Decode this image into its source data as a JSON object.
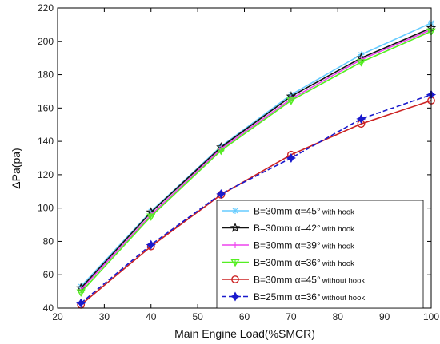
{
  "chart_data": {
    "type": "line",
    "title": "",
    "xlabel": "Main Engine Load(%SMCR)",
    "ylabel": "ΔPa(pa)",
    "xlim": [
      20,
      100
    ],
    "ylim": [
      40,
      220
    ],
    "xticks": [
      20,
      30,
      40,
      50,
      60,
      70,
      80,
      90,
      100
    ],
    "yticks": [
      40,
      60,
      80,
      100,
      120,
      140,
      160,
      180,
      200,
      220
    ],
    "grid": false,
    "legend_position": "bottom-right",
    "x": [
      25,
      40,
      55,
      70,
      85,
      100
    ],
    "series": [
      {
        "name": "B=30mm  α=45°",
        "suffix": "with hook",
        "color": "#66ccff",
        "marker": "asterisk",
        "line": "solid",
        "values": [
          53,
          98,
          137,
          168,
          192,
          211
        ]
      },
      {
        "name": "B=30mm  α=42°",
        "suffix": "with hook",
        "color": "#111111",
        "marker": "star",
        "line": "solid",
        "values": [
          52,
          97.5,
          136.5,
          167,
          190,
          208
        ]
      },
      {
        "name": "B=30mm  α=39°",
        "suffix": "with hook",
        "color": "#ee44ee",
        "marker": "plus",
        "line": "solid",
        "values": [
          51,
          96,
          135.5,
          165.5,
          189,
          207
        ]
      },
      {
        "name": "B=30mm  α=36°",
        "suffix": "with hook",
        "color": "#55ee22",
        "marker": "triangle-star",
        "line": "solid",
        "values": [
          49.5,
          95,
          134.5,
          164.5,
          187.5,
          206
        ]
      },
      {
        "name": "B=30mm  α=45°",
        "suffix": "without hook",
        "color": "#cc2222",
        "marker": "circle",
        "line": "solid",
        "values": [
          42,
          77,
          108,
          132,
          150.5,
          164.5
        ]
      },
      {
        "name": "B=25mm  α=36°",
        "suffix": "without hook",
        "color": "#1a1acc",
        "marker": "diamond-star",
        "line": "dashed",
        "values": [
          43,
          78,
          108.5,
          130,
          153.5,
          168
        ]
      }
    ]
  }
}
